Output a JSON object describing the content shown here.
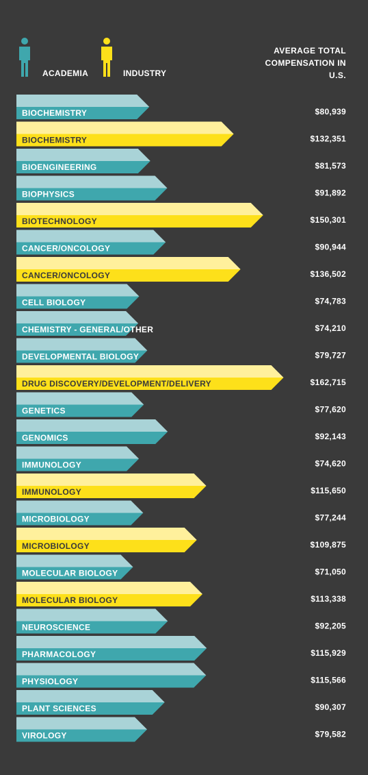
{
  "chart_data": {
    "type": "bar",
    "value_header": "AVERAGE TOTAL COMPENSATION IN U.S.",
    "categories": [
      "BIOCHEMISTRY",
      "BIOCHEMISTRY",
      "BIOENGINEERING",
      "BIOPHYSICS",
      "BIOTECHNOLOGY",
      "CANCER/ONCOLOGY",
      "CANCER/ONCOLOGY",
      "CELL BIOLOGY",
      "CHEMISTRY - GENERAL/OTHER",
      "DEVELOPMENTAL BIOLOGY",
      "DRUG DISCOVERY/DEVELOPMENT/DELIVERY",
      "GENETICS",
      "GENOMICS",
      "IMMUNOLOGY",
      "IMMUNOLOGY",
      "MICROBIOLOGY",
      "MICROBIOLOGY",
      "MOLECULAR BIOLOGY",
      "MOLECULAR BIOLOGY",
      "NEUROSCIENCE",
      "PHARMACOLOGY",
      "PHYSIOLOGY",
      "PLANT SCIENCES",
      "VIROLOGY"
    ],
    "series": [
      {
        "name": "ACADEMIA",
        "color": "#3fa7ad",
        "light_color": "#a9d3d7",
        "text_color": "#ffffff",
        "values": [
          80939,
          null,
          81573,
          91892,
          null,
          90944,
          null,
          74783,
          74210,
          79727,
          null,
          77620,
          92143,
          74620,
          null,
          77244,
          null,
          71050,
          null,
          92205,
          115929,
          115566,
          90307,
          79582
        ],
        "value_labels": [
          "$80,939",
          null,
          "$81,573",
          "$91,892",
          null,
          "$90,944",
          null,
          "$74,783",
          "$74,210",
          "$79,727",
          null,
          "$77,620",
          "$92,143",
          "$74,620",
          null,
          "$77,244",
          null,
          "$71,050",
          null,
          "$92,205",
          "$115,929",
          "$115,566",
          "$90,307",
          "$79,582"
        ]
      },
      {
        "name": "INDUSTRY",
        "color": "#fde01a",
        "light_color": "#fff09c",
        "text_color": "#3a3a3a",
        "values": [
          null,
          132351,
          null,
          null,
          150301,
          null,
          136502,
          null,
          null,
          null,
          162715,
          null,
          null,
          null,
          115650,
          null,
          109875,
          null,
          113338,
          null,
          null,
          null,
          null,
          null
        ],
        "value_labels": [
          null,
          "$132,351",
          null,
          null,
          "$150,301",
          null,
          "$136,502",
          null,
          null,
          null,
          "$162,715",
          null,
          null,
          null,
          "$115,650",
          null,
          "$109,875",
          null,
          "$113,338",
          null,
          null,
          null,
          null,
          null
        ]
      }
    ]
  }
}
